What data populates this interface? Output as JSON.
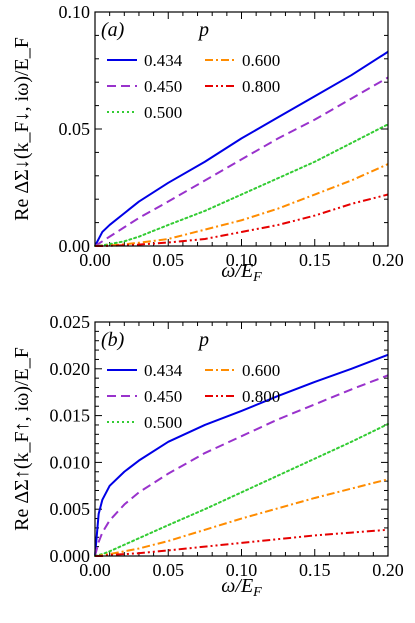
{
  "chart_data": [
    {
      "type": "line",
      "panel_label": "(a)",
      "legend_title": "p",
      "xlabel": "ω/E_F",
      "ylabel": "Re ΔΣ↓(k_F↓, iω)/E_F",
      "xlim": [
        0,
        0.2
      ],
      "ylim": [
        0,
        0.1
      ],
      "xticks": [
        "0.00",
        "0.05",
        "0.10",
        "0.15",
        "0.20"
      ],
      "yticks": [
        "0.00",
        "0.05",
        "0.10"
      ],
      "x": [
        0,
        0.005,
        0.01,
        0.02,
        0.03,
        0.05,
        0.075,
        0.1,
        0.125,
        0.15,
        0.175,
        0.2
      ],
      "series": [
        {
          "name": "0.434",
          "color": "#0000e6",
          "dash": "solid",
          "values": [
            0,
            0.006,
            0.009,
            0.014,
            0.019,
            0.027,
            0.036,
            0.046,
            0.055,
            0.064,
            0.073,
            0.083
          ]
        },
        {
          "name": "0.450",
          "color": "#9932cc",
          "dash": "dashed",
          "values": [
            0,
            0.002,
            0.004,
            0.008,
            0.012,
            0.019,
            0.028,
            0.037,
            0.046,
            0.054,
            0.063,
            0.072
          ]
        },
        {
          "name": "0.500",
          "color": "#33cc33",
          "dash": "dotted",
          "values": [
            0,
            0.0003,
            0.0008,
            0.002,
            0.004,
            0.009,
            0.015,
            0.022,
            0.029,
            0.036,
            0.044,
            0.052
          ]
        },
        {
          "name": "0.600",
          "color": "#ff8c00",
          "dash": "dashdot",
          "values": [
            0,
            0.0001,
            0.0002,
            0.0007,
            0.0014,
            0.003,
            0.007,
            0.011,
            0.016,
            0.022,
            0.028,
            0.035
          ]
        },
        {
          "name": "0.800",
          "color": "#e60000",
          "dash": "dashdotdot",
          "values": [
            0,
            0,
            0.0001,
            0.0003,
            0.0006,
            0.0015,
            0.003,
            0.006,
            0.009,
            0.013,
            0.018,
            0.022
          ]
        }
      ],
      "legend": "top-left"
    },
    {
      "type": "line",
      "panel_label": "(b)",
      "legend_title": "p",
      "xlabel": "ω/E_F",
      "ylabel": "Re ΔΣ↑(k_F↑, iω)/E_F",
      "xlim": [
        0,
        0.2
      ],
      "ylim": [
        0,
        0.025
      ],
      "xticks": [
        "0.00",
        "0.05",
        "0.10",
        "0.15",
        "0.20"
      ],
      "yticks": [
        "0.000",
        "0.005",
        "0.010",
        "0.015",
        "0.020",
        "0.025"
      ],
      "x": [
        0,
        0.0025,
        0.005,
        0.01,
        0.02,
        0.03,
        0.05,
        0.075,
        0.1,
        0.125,
        0.15,
        0.175,
        0.2
      ],
      "series": [
        {
          "name": "0.434",
          "color": "#0000e6",
          "dash": "solid",
          "values": [
            0,
            0.0045,
            0.006,
            0.0075,
            0.009,
            0.0102,
            0.0122,
            0.014,
            0.0155,
            0.0171,
            0.0186,
            0.02,
            0.0215
          ]
        },
        {
          "name": "0.450",
          "color": "#9932cc",
          "dash": "dashed",
          "values": [
            0,
            0.0015,
            0.0025,
            0.0038,
            0.0055,
            0.0068,
            0.0088,
            0.011,
            0.0128,
            0.0146,
            0.0162,
            0.0178,
            0.0193
          ]
        },
        {
          "name": "0.500",
          "color": "#33cc33",
          "dash": "dotted",
          "values": [
            0,
            0.0001,
            0.0002,
            0.0005,
            0.0012,
            0.0019,
            0.0033,
            0.005,
            0.0068,
            0.0086,
            0.0104,
            0.0122,
            0.0141
          ]
        },
        {
          "name": "0.600",
          "color": "#ff8c00",
          "dash": "dashdot",
          "values": [
            0,
            0,
            0.0001,
            0.0002,
            0.0005,
            0.0008,
            0.0016,
            0.0028,
            0.004,
            0.0051,
            0.0062,
            0.0072,
            0.0082
          ]
        },
        {
          "name": "0.800",
          "color": "#e60000",
          "dash": "dashdotdot",
          "values": [
            0,
            0,
            0,
            0.0001,
            0.0002,
            0.0003,
            0.0006,
            0.001,
            0.0014,
            0.0018,
            0.0022,
            0.0025,
            0.0028
          ]
        }
      ],
      "legend": "top-left"
    }
  ]
}
